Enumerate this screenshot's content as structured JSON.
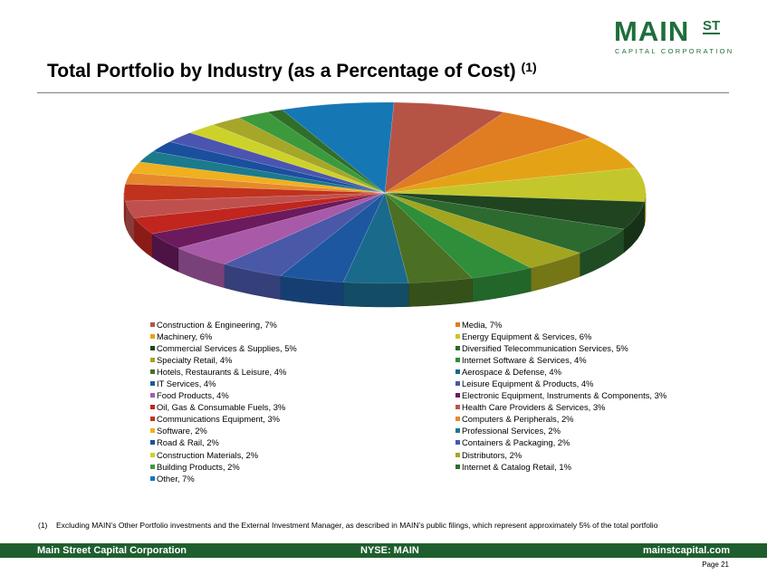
{
  "logo": {
    "main": "MAIN",
    "superscript": "ST",
    "sub": "CAPITAL CORPORATION"
  },
  "title": "Total Portfolio by Industry (as a Percentage of Cost)",
  "title_note": "(1)",
  "chart_data": {
    "type": "pie",
    "title": "",
    "legend_placement": "bottom",
    "slices": [
      {
        "label": "Construction & Engineering, 7%",
        "value": 7,
        "color": "#b55445"
      },
      {
        "label": "Media, 7%",
        "value": 7,
        "color": "#e07c22"
      },
      {
        "label": "Machinery, 6%",
        "value": 6,
        "color": "#e4a317"
      },
      {
        "label": "Energy Equipment & Services, 6%",
        "value": 6,
        "color": "#c4c72b"
      },
      {
        "label": "Commercial Services & Supplies, 5%",
        "value": 5,
        "color": "#20441f"
      },
      {
        "label": "Diversified Telecommunication Services, 5%",
        "value": 5,
        "color": "#2c6a30"
      },
      {
        "label": "Specialty Retail, 4%",
        "value": 4,
        "color": "#a3a41f"
      },
      {
        "label": "Internet Software & Services, 4%",
        "value": 4,
        "color": "#2f8e3a"
      },
      {
        "label": "Hotels, Restaurants & Leisure, 4%",
        "value": 4,
        "color": "#4b6f23"
      },
      {
        "label": "Aerospace & Defense, 4%",
        "value": 4,
        "color": "#1a6a8c"
      },
      {
        "label": "IT Services, 4%",
        "value": 4,
        "color": "#1d57a0"
      },
      {
        "label": "Leisure Equipment & Products, 4%",
        "value": 4,
        "color": "#4a58a8"
      },
      {
        "label": "Food Products, 4%",
        "value": 4,
        "color": "#a85aa8"
      },
      {
        "label": "Electronic Equipment, Instruments & Components, 3%",
        "value": 3,
        "color": "#6b1a5e"
      },
      {
        "label": "Oil, Gas & Consumable Fuels, 3%",
        "value": 3,
        "color": "#c0261e"
      },
      {
        "label": "Health Care Providers & Services, 3%",
        "value": 3,
        "color": "#c0504d"
      },
      {
        "label": "Communications Equipment, 3%",
        "value": 3,
        "color": "#c0321e"
      },
      {
        "label": "Computers & Peripherals, 2%",
        "value": 2,
        "color": "#e6892a"
      },
      {
        "label": "Software, 2%",
        "value": 2,
        "color": "#f0b020"
      },
      {
        "label": "Professional Services, 2%",
        "value": 2,
        "color": "#1b7a8c"
      },
      {
        "label": "Road & Rail, 2%",
        "value": 2,
        "color": "#1a4f9e"
      },
      {
        "label": "Containers & Packaging, 2%",
        "value": 2,
        "color": "#4b55b0"
      },
      {
        "label": "Construction Materials, 2%",
        "value": 2,
        "color": "#cdd22a"
      },
      {
        "label": "Distributors, 2%",
        "value": 2,
        "color": "#a6a629"
      },
      {
        "label": "Building Products, 2%",
        "value": 2,
        "color": "#3c9a3c"
      },
      {
        "label": "Internet & Catalog Retail, 1%",
        "value": 1,
        "color": "#2f6f2a"
      },
      {
        "label": "Other, 7%",
        "value": 7,
        "color": "#1677b5"
      }
    ]
  },
  "footnote": {
    "number": "(1)",
    "text": "Excluding MAIN’s Other Portfolio investments and the External Investment Manager, as described in MAIN’s public filings, which represent approximately 5% of the total portfolio"
  },
  "footer": {
    "left": "Main Street Capital Corporation",
    "center": "NYSE: MAIN",
    "right": "mainstcapital.com"
  },
  "page_label": "Page  21"
}
